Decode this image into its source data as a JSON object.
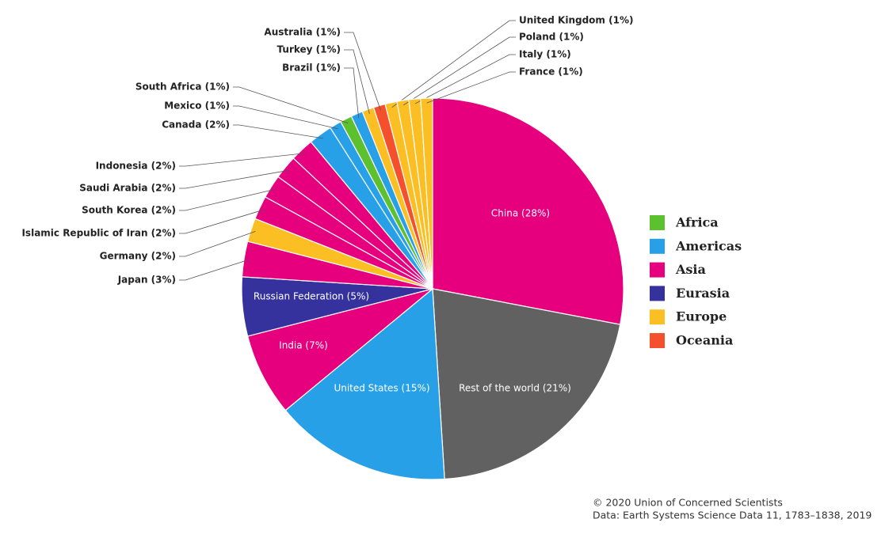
{
  "chart_data": {
    "type": "pie",
    "categories": [
      "China (28%)",
      "Rest of the world (21%)",
      "United States (15%)",
      "India (7%)",
      "Russian Federation (5%)",
      "Japan (3%)",
      "Germany (2%)",
      "Islamic Republic of Iran (2%)",
      "South Korea (2%)",
      "Saudi Arabia (2%)",
      "Indonesia (2%)",
      "Canada (2%)",
      "Mexico (1%)",
      "South Africa (1%)",
      "Brazil (1%)",
      "Turkey (1%)",
      "Australia (1%)",
      "United Kingdom (1%)",
      "Poland (1%)",
      "Italy (1%)",
      "France (1%)"
    ],
    "values": [
      28,
      21,
      15,
      7,
      5,
      3,
      2,
      2,
      2,
      2,
      2,
      2,
      1,
      1,
      1,
      1,
      1,
      1,
      1,
      1,
      1
    ],
    "colors": [
      "#e6007e",
      "#616161",
      "#27a0e8",
      "#e6007e",
      "#35329e",
      "#e6007e",
      "#fbbf24",
      "#e6007e",
      "#e6007e",
      "#e6007e",
      "#e6007e",
      "#27a0e8",
      "#27a0e8",
      "#5dc12f",
      "#27a0e8",
      "#fbbf24",
      "#f4502e",
      "#fbbf24",
      "#fbbf24",
      "#fbbf24",
      "#fbbf24"
    ],
    "legend": [
      {
        "name": "Africa",
        "color": "#5dc12f"
      },
      {
        "name": "Americas",
        "color": "#27a0e8"
      },
      {
        "name": "Asia",
        "color": "#e6007e"
      },
      {
        "name": "Eurasia",
        "color": "#35329e"
      },
      {
        "name": "Europe",
        "color": "#fbbf24"
      },
      {
        "name": "Oceania",
        "color": "#f4502e"
      }
    ],
    "credit": "© 2020 Union of Concerned Scientists",
    "source": "Data: Earth Systems Science Data 11, 1783–1838, 2019"
  }
}
